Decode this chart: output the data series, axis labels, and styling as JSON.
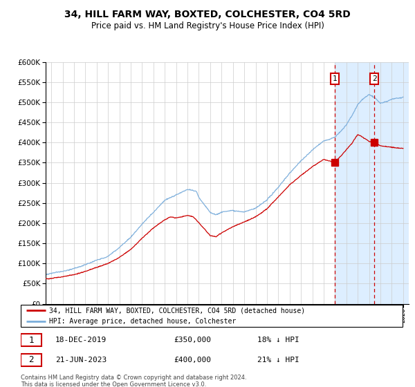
{
  "title": "34, HILL FARM WAY, BOXTED, COLCHESTER, CO4 5RD",
  "subtitle": "Price paid vs. HM Land Registry's House Price Index (HPI)",
  "hpi_color": "#7aaddb",
  "price_color": "#cc0000",
  "marker1_date_num": 2019.96,
  "marker2_date_num": 2023.47,
  "marker1_price_val": 350000,
  "marker2_price_val": 400000,
  "marker1_label": "18-DEC-2019",
  "marker1_price": "£350,000",
  "marker1_hpi": "18% ↓ HPI",
  "marker2_label": "21-JUN-2023",
  "marker2_price": "£400,000",
  "marker2_hpi": "21% ↓ HPI",
  "legend_line1": "34, HILL FARM WAY, BOXTED, COLCHESTER, CO4 5RD (detached house)",
  "legend_line2": "HPI: Average price, detached house, Colchester",
  "footer": "Contains HM Land Registry data © Crown copyright and database right 2024.\nThis data is licensed under the Open Government Licence v3.0.",
  "ylim_min": 0,
  "ylim_max": 600000,
  "xlim_min": 1994.5,
  "xlim_max": 2026.5,
  "background_color": "#ffffff",
  "grid_color": "#cccccc",
  "shade_color": "#ddeeff"
}
